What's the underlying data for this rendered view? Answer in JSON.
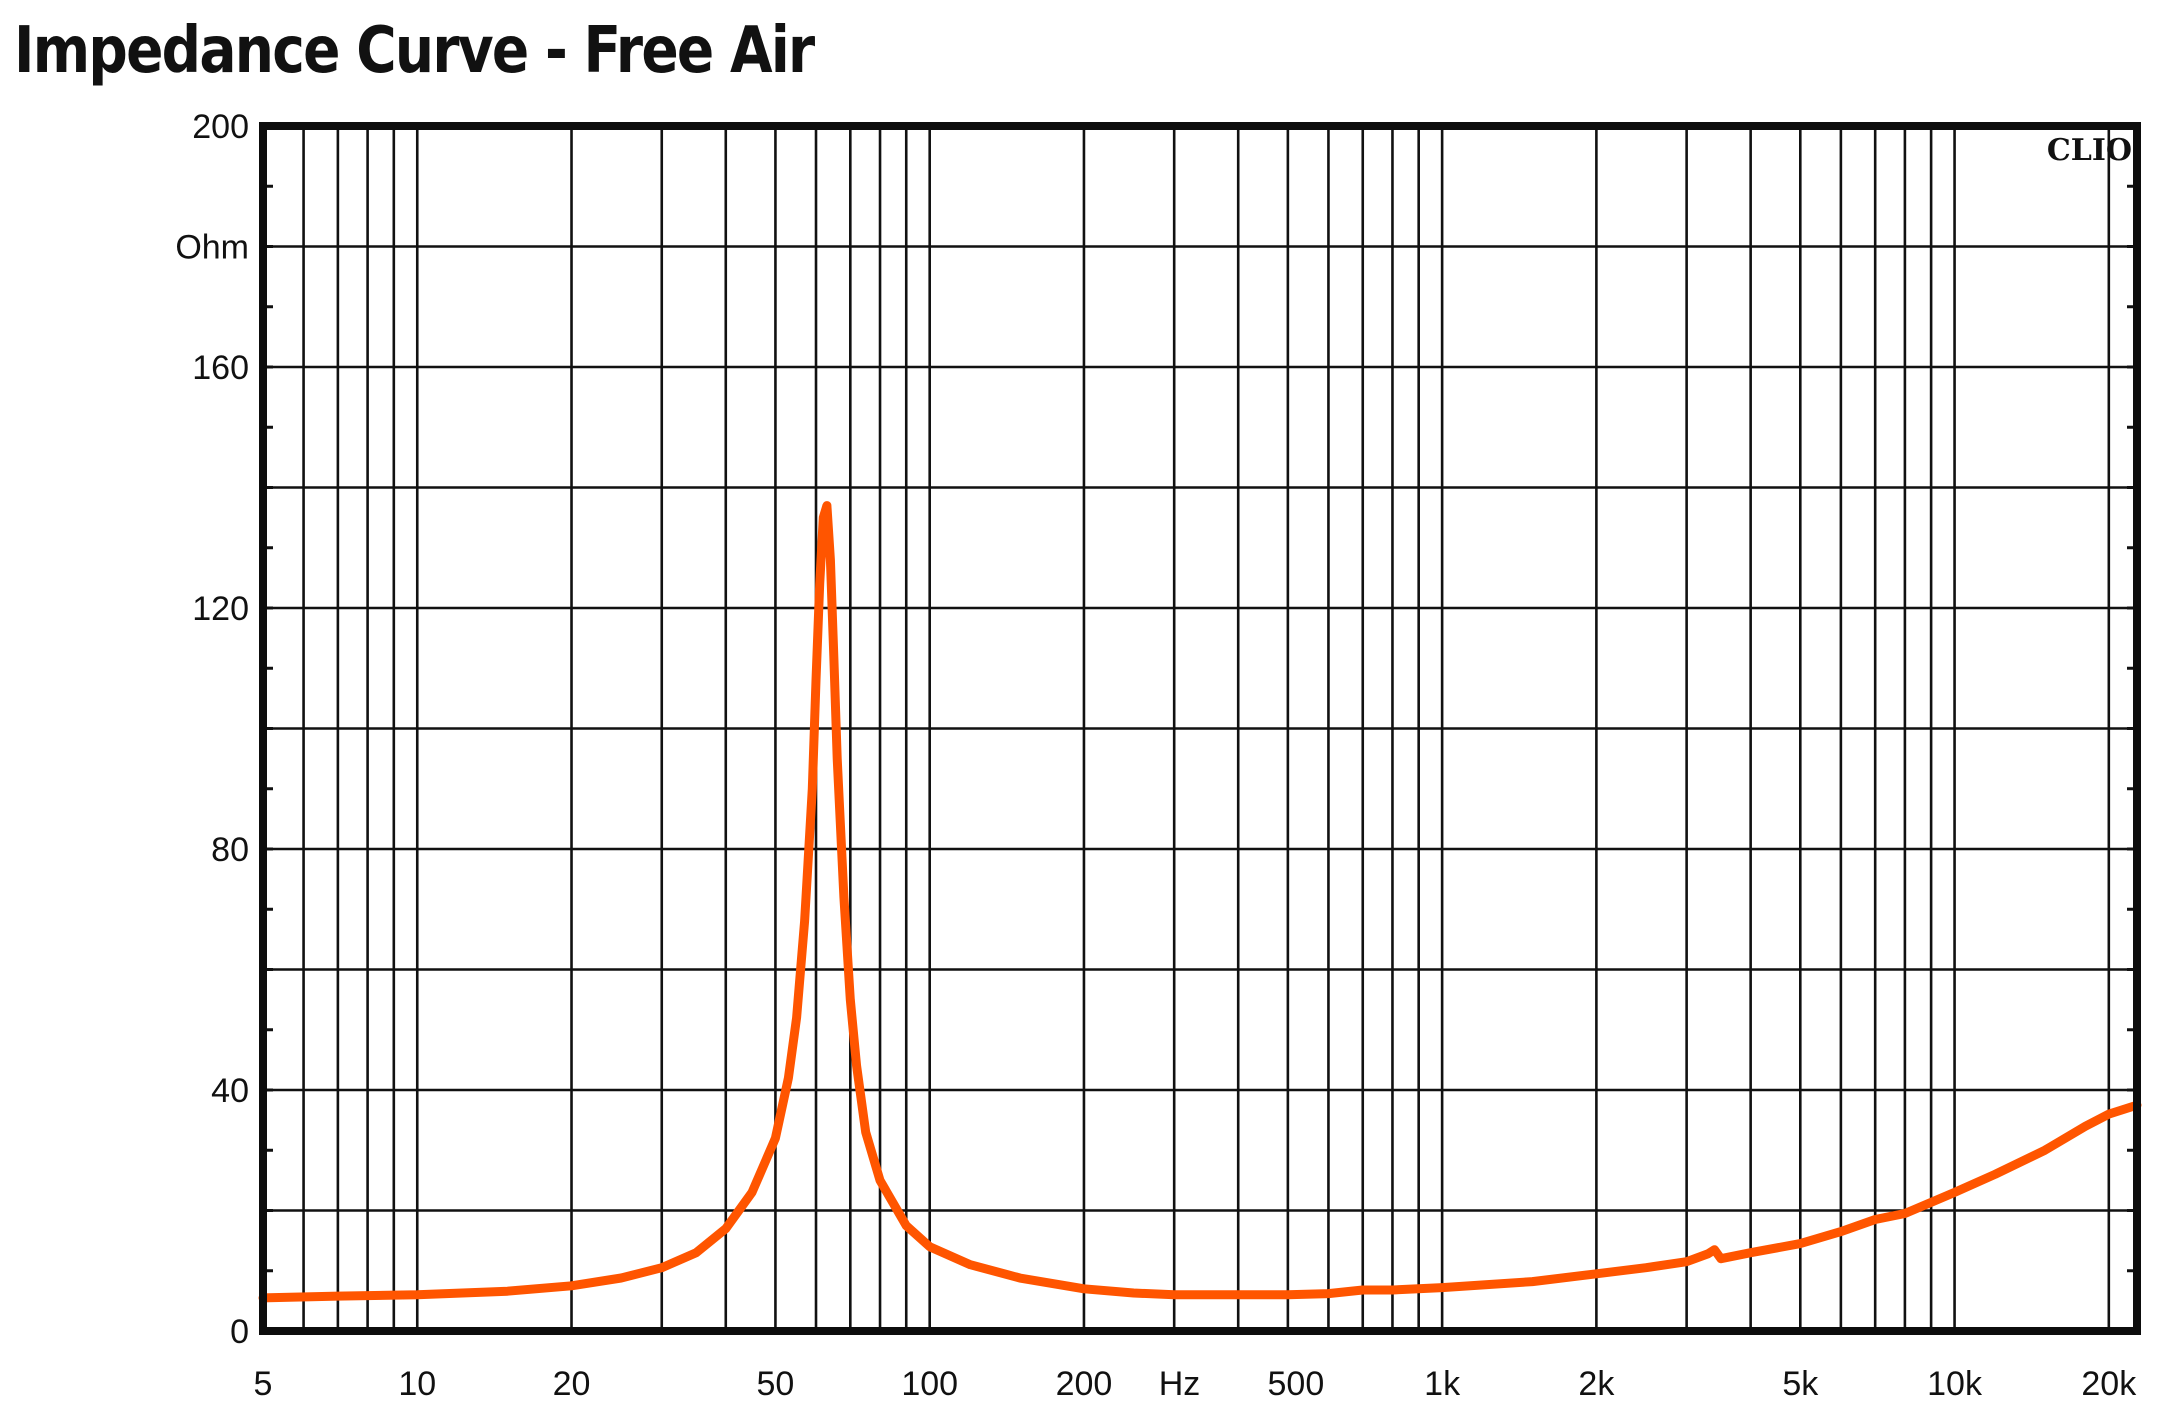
{
  "title": "Impedance Curve - Free Air",
  "brand": "CLIO",
  "chart_data": {
    "type": "line",
    "title": "Impedance Curve - Free Air",
    "xlabel": "Hz",
    "ylabel": "Ohm",
    "xscale": "log",
    "xlim": [
      5,
      22700
    ],
    "ylim": [
      0,
      200
    ],
    "grid": true,
    "y_ticks": [
      0,
      40,
      80,
      120,
      160,
      200
    ],
    "y_tick_labels": [
      "0",
      "40",
      "80",
      "120",
      "160",
      "200"
    ],
    "x_ticks": [
      5,
      10,
      20,
      50,
      100,
      200,
      500,
      1000,
      2000,
      5000,
      10000,
      20000
    ],
    "x_tick_labels": [
      "5",
      "10",
      "20",
      "50",
      "100",
      "200",
      "500",
      "1k",
      "2k",
      "5k",
      "10k",
      "20k"
    ],
    "line_color": "#ff5500",
    "series": [
      {
        "name": "Impedance",
        "x": [
          5,
          7,
          10,
          15,
          20,
          25,
          30,
          35,
          40,
          45,
          50,
          53,
          55,
          57,
          59,
          60,
          61,
          62,
          63,
          64,
          65,
          66,
          68,
          70,
          72,
          75,
          80,
          90,
          100,
          120,
          150,
          200,
          250,
          300,
          400,
          500,
          600,
          700,
          800,
          1000,
          1500,
          2000,
          2500,
          3000,
          3300,
          3400,
          3500,
          4000,
          5000,
          6000,
          7000,
          8000,
          10000,
          12000,
          15000,
          18000,
          20000,
          22700
        ],
        "y": [
          5.5,
          5.8,
          6,
          6.6,
          7.5,
          8.8,
          10.5,
          13,
          17,
          23,
          32,
          42,
          52,
          68,
          90,
          108,
          124,
          135,
          137,
          128,
          112,
          95,
          72,
          55,
          44,
          33,
          25,
          17.5,
          14,
          11,
          8.8,
          7,
          6.3,
          6,
          6,
          6,
          6.2,
          6.8,
          6.8,
          7.2,
          8.2,
          9.5,
          10.5,
          11.5,
          12.8,
          13.5,
          12,
          13,
          14.5,
          16.5,
          18.5,
          19.5,
          23,
          26,
          30,
          34,
          36,
          37.5
        ]
      }
    ]
  }
}
